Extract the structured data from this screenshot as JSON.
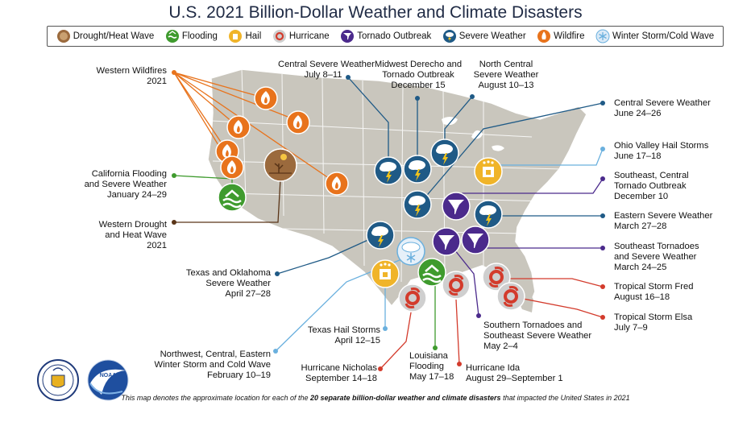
{
  "title": "U.S. 2021 Billion-Dollar Weather and Climate Disasters",
  "legend": [
    {
      "label": "Drought/Heat Wave",
      "icon": "drought-icon",
      "color": "#9b6a3d"
    },
    {
      "label": "Flooding",
      "icon": "flooding-icon",
      "color": "#3f9b2e"
    },
    {
      "label": "Hail",
      "icon": "hail-icon",
      "color": "#f0b429"
    },
    {
      "label": "Hurricane",
      "icon": "hurricane-icon",
      "color": "#d33b2c"
    },
    {
      "label": "Tornado Outbreak",
      "icon": "tornado-icon",
      "color": "#4b2a8c"
    },
    {
      "label": "Severe Weather",
      "icon": "severe-weather-icon",
      "color": "#1f5a86"
    },
    {
      "label": "Wildfire",
      "icon": "wildfire-icon",
      "color": "#e8731c"
    },
    {
      "label": "Winter Storm/Cold Wave",
      "icon": "winter-storm-icon",
      "color": "#6ab0de"
    }
  ],
  "callouts": {
    "western_wildfires": [
      "Western Wildfires",
      "2021"
    ],
    "california_flooding": [
      "California Flooding",
      "and Severe Weather",
      "January 24–29"
    ],
    "western_drought": [
      "Western Drought",
      "and Heat Wave",
      "2021"
    ],
    "texas_oklahoma": [
      "Texas and Oklahoma",
      "Severe Weather",
      "April 27–28"
    ],
    "northwest_winter": [
      "Northwest, Central, Eastern",
      "Winter Storm and Cold Wave",
      "February 10–19"
    ],
    "central_severe_july": [
      "Central Severe Weather",
      "July 8–11"
    ],
    "midwest_derecho": [
      "Midwest Derecho and",
      "Tornado Outbreak",
      "December 15"
    ],
    "north_central": [
      "North Central",
      "Severe Weather",
      "August 10–13"
    ],
    "central_severe_june": [
      "Central Severe Weather",
      "June 24–26"
    ],
    "ohio_valley_hail": [
      "Ohio Valley Hail Storms",
      "June 17–18"
    ],
    "southeast_central_tornado": [
      "Southeast, Central",
      "Tornado Outbreak",
      "December 10"
    ],
    "eastern_severe": [
      "Eastern Severe Weather",
      "March 27–28"
    ],
    "southeast_tornadoes": [
      "Southeast Tornadoes",
      "and Severe Weather",
      "March 24–25"
    ],
    "ts_fred": [
      "Tropical Storm Fred",
      "August 16–18"
    ],
    "ts_elsa": [
      "Tropical Storm Elsa",
      "July 7–9"
    ],
    "texas_hail": [
      "Texas Hail Storms",
      "April 12–15"
    ],
    "hurricane_nicholas": [
      "Hurricane Nicholas",
      "September 14–18"
    ],
    "louisiana_flooding": [
      "Louisiana",
      "Flooding",
      "May 17–18"
    ],
    "hurricane_ida": [
      "Hurricane Ida",
      "August 29–September 1"
    ],
    "southern_tornadoes": [
      "Southern Tornadoes and",
      "Southeast Severe Weather",
      "May 2–4"
    ]
  },
  "footnote": {
    "prefix": "This map denotes the approximate location for each of the ",
    "bold": "20 separate billion-dollar weather and climate disasters",
    "suffix": " that impacted the United States in 2021"
  },
  "logos": {
    "commerce": "commerce-seal",
    "noaa_text": "NOAA"
  }
}
